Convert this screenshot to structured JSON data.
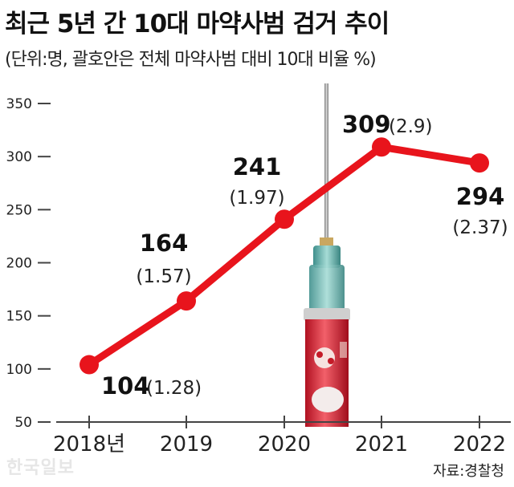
{
  "title": "최근 5년 간 10대 마약사범 검거 추이",
  "subtitle": "(단위:명, 괄호안은 전체 마약사범 대비 10대 비율 %)",
  "source": "자료:경찰청",
  "watermark": "한국일보",
  "colors": {
    "line": "#e8141c",
    "axis": "#444444"
  },
  "chart_data": {
    "type": "line",
    "categories": [
      "2018년",
      "2019",
      "2020",
      "2021",
      "2022"
    ],
    "values": [
      104,
      164,
      241,
      309,
      294
    ],
    "ratios": [
      "(1.28)",
      "(1.57)",
      "(1.97)",
      "(2.9)",
      "(2.37)"
    ],
    "ylim": [
      50,
      350
    ],
    "yticks": [
      50,
      100,
      150,
      200,
      250,
      300,
      350
    ],
    "grid": false
  }
}
